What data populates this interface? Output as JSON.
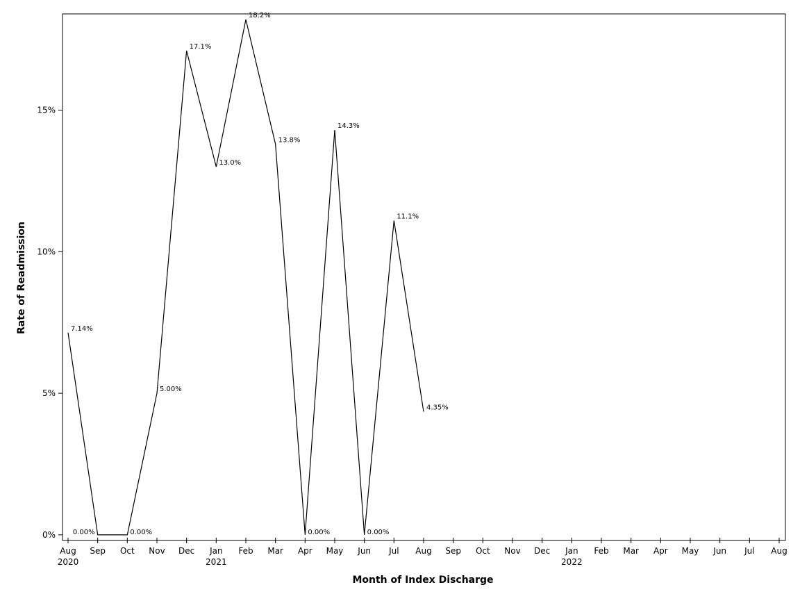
{
  "chart_data": {
    "type": "line",
    "xlabel": "Month of Index Discharge",
    "ylabel": "Rate of Readmission",
    "x_ticks": [
      "Aug",
      "Sep",
      "Oct",
      "Nov",
      "Dec",
      "Jan",
      "Feb",
      "Mar",
      "Apr",
      "May",
      "Jun",
      "Jul",
      "Aug",
      "Sep",
      "Oct",
      "Nov",
      "Dec",
      "Jan",
      "Feb",
      "Mar",
      "Apr",
      "May",
      "Jun",
      "Jul",
      "Aug"
    ],
    "x_year_labels": [
      {
        "tick_index": 0,
        "label": "2020"
      },
      {
        "tick_index": 5,
        "label": "2021"
      },
      {
        "tick_index": 17,
        "label": "2022"
      }
    ],
    "x_range": [
      "2020-08",
      "2022-08"
    ],
    "y_ticks": [
      {
        "value": 0,
        "label": "0%"
      },
      {
        "value": 5,
        "label": "5%"
      },
      {
        "value": 10,
        "label": "10%"
      },
      {
        "value": 15,
        "label": "15%"
      }
    ],
    "ylim": [
      -0.2,
      18.4
    ],
    "grid": false,
    "series": [
      {
        "x": [
          "2020-08",
          "2020-09",
          "2020-10",
          "2020-11",
          "2020-12",
          "2021-01",
          "2021-02",
          "2021-03",
          "2021-04",
          "2021-05",
          "2021-06",
          "2021-07",
          "2021-08"
        ],
        "values": [
          7.14,
          0,
          0,
          5.0,
          17.1,
          13.0,
          18.2,
          13.8,
          0,
          14.3,
          0,
          11.1,
          4.35
        ],
        "labels": [
          "7.14%",
          "0.00%",
          "0.00%",
          "5.00%",
          "17.1%",
          "13.0%",
          "18.2%",
          "13.8%",
          "0.00%",
          "14.3%",
          "0.00%",
          "11.1%",
          "4.35%"
        ],
        "color": "#000000"
      }
    ]
  }
}
